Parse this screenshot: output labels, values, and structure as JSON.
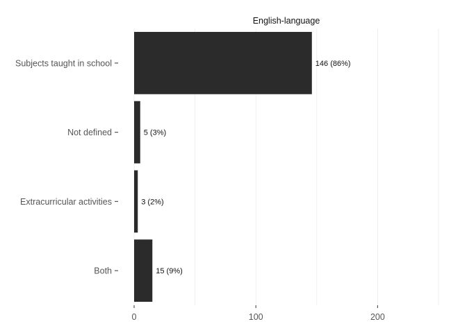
{
  "chart_data": {
    "type": "bar",
    "orientation": "horizontal",
    "title": "English-language",
    "categories": [
      "Subjects taught in school",
      "Not defined",
      "Extracurricular activities",
      "Both"
    ],
    "values": [
      146,
      5,
      3,
      15
    ],
    "data_labels": [
      "146 (86%)",
      "5 (3%)",
      "3 (2%)",
      "15 (9%)"
    ],
    "x_ticks": [
      0,
      100,
      200
    ],
    "x_tick_labels": [
      "0",
      "100",
      "200"
    ],
    "xlim": [
      0,
      250
    ],
    "xlabel": "",
    "ylabel": "",
    "grid": true,
    "legend": "none",
    "colors": {
      "bar": "#2b2b2b",
      "grid": "#ebebeb",
      "axis_text": "#555555",
      "label_text": "#111111"
    }
  }
}
